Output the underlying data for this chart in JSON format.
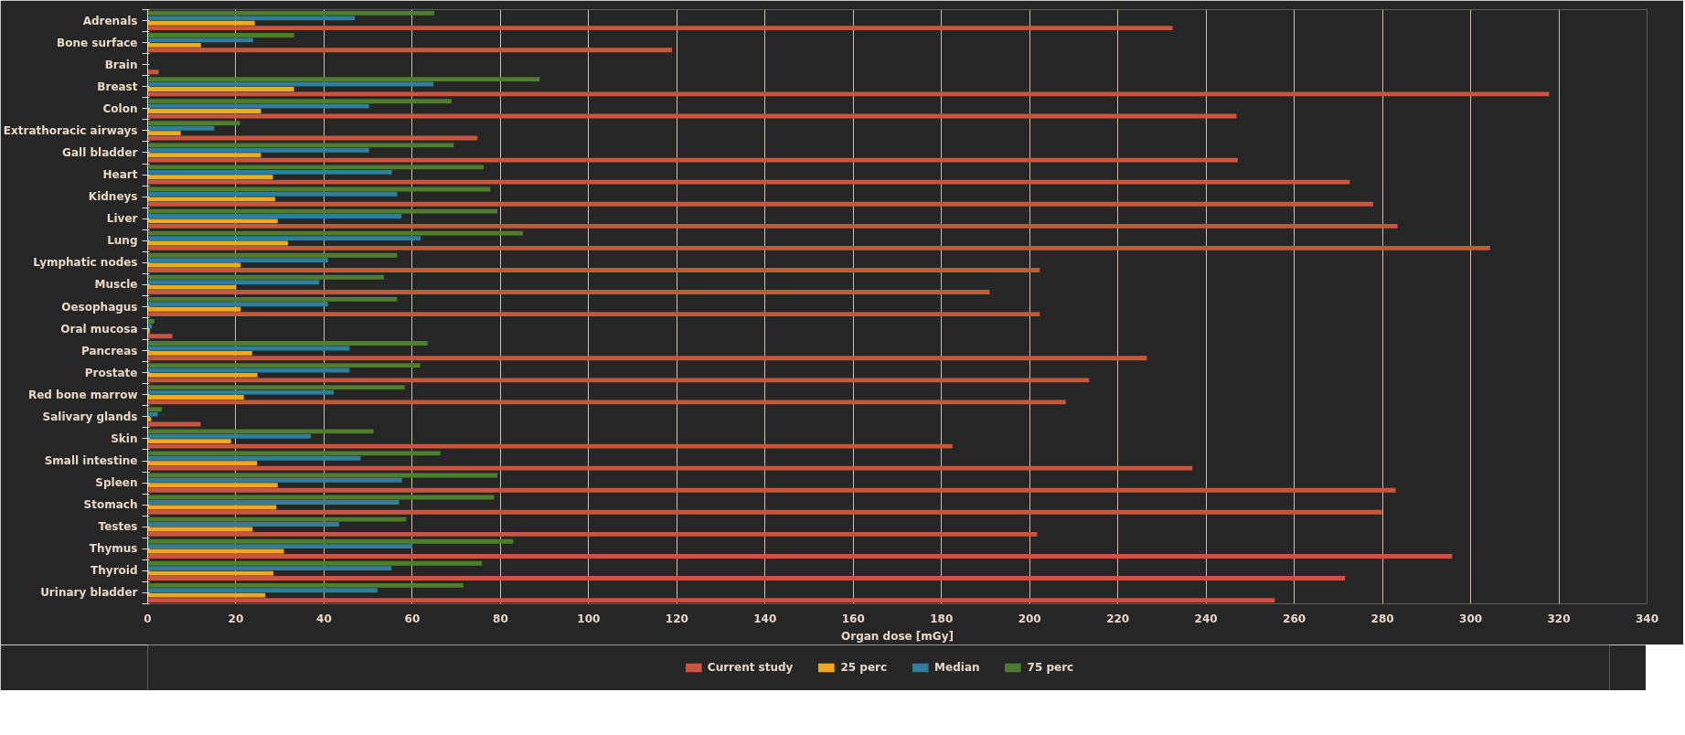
{
  "chart_data": {
    "type": "bar",
    "orientation": "horizontal",
    "xlabel": "Organ dose [mGy]",
    "categories": [
      "Adrenals",
      "Bone surface",
      "Brain",
      "Breast",
      "Colon",
      "Extrathoracic airways",
      "Gall bladder",
      "Heart",
      "Kidneys",
      "Liver",
      "Lung",
      "Lymphatic nodes",
      "Muscle",
      "Oesophagus",
      "Oral mucosa",
      "Pancreas",
      "Prostate",
      "Red bone marrow",
      "Salivary glands",
      "Skin",
      "Small intestine",
      "Spleen",
      "Stomach",
      "Testes",
      "Thymus",
      "Thyroid",
      "Urinary bladder"
    ],
    "series": [
      {
        "name": "Current study",
        "color": "#c8553d",
        "values": [
          232.4,
          118.9,
          2.5,
          317.8,
          246.9,
          74.8,
          247.2,
          272.6,
          277.9,
          283.4,
          304.4,
          202.3,
          190.9,
          202.3,
          5.6,
          226.6,
          213.5,
          208.2,
          12.0,
          182.5,
          236.9,
          283.0,
          279.9,
          201.7,
          295.8,
          271.5,
          255.6
        ]
      },
      {
        "name": "25 perc",
        "color": "#f0a81c",
        "values": [
          24.3,
          12.1,
          0,
          33.2,
          25.7,
          7.5,
          25.7,
          28.4,
          28.9,
          29.5,
          31.8,
          21.1,
          20.1,
          21.1,
          0.5,
          23.7,
          24.9,
          21.8,
          0.8,
          18.9,
          24.8,
          29.5,
          29.2,
          23.8,
          30.9,
          28.5,
          26.7
        ]
      },
      {
        "name": "Median",
        "color": "#2f7f9b",
        "values": [
          47.0,
          23.9,
          0,
          64.8,
          50.2,
          15.1,
          50.2,
          55.4,
          56.6,
          57.6,
          61.9,
          40.9,
          38.9,
          40.9,
          1.0,
          45.8,
          45.8,
          42.2,
          2.3,
          37.0,
          48.3,
          57.7,
          57.0,
          43.4,
          60.0,
          55.3,
          52.1
        ]
      },
      {
        "name": "75 perc",
        "color": "#4e7d2f",
        "values": [
          65.0,
          33.2,
          0,
          88.9,
          68.9,
          20.9,
          69.4,
          76.2,
          77.7,
          79.3,
          85.1,
          56.6,
          53.6,
          56.6,
          1.5,
          63.5,
          61.8,
          58.3,
          3.2,
          51.2,
          66.4,
          79.3,
          78.6,
          58.6,
          82.9,
          75.8,
          71.6
        ]
      }
    ],
    "xlim": [
      0,
      340
    ],
    "xticks": [
      0,
      20,
      40,
      60,
      80,
      100,
      120,
      140,
      160,
      180,
      200,
      220,
      240,
      260,
      280,
      300,
      320,
      340
    ],
    "grid": "x",
    "legend": "bottom"
  }
}
